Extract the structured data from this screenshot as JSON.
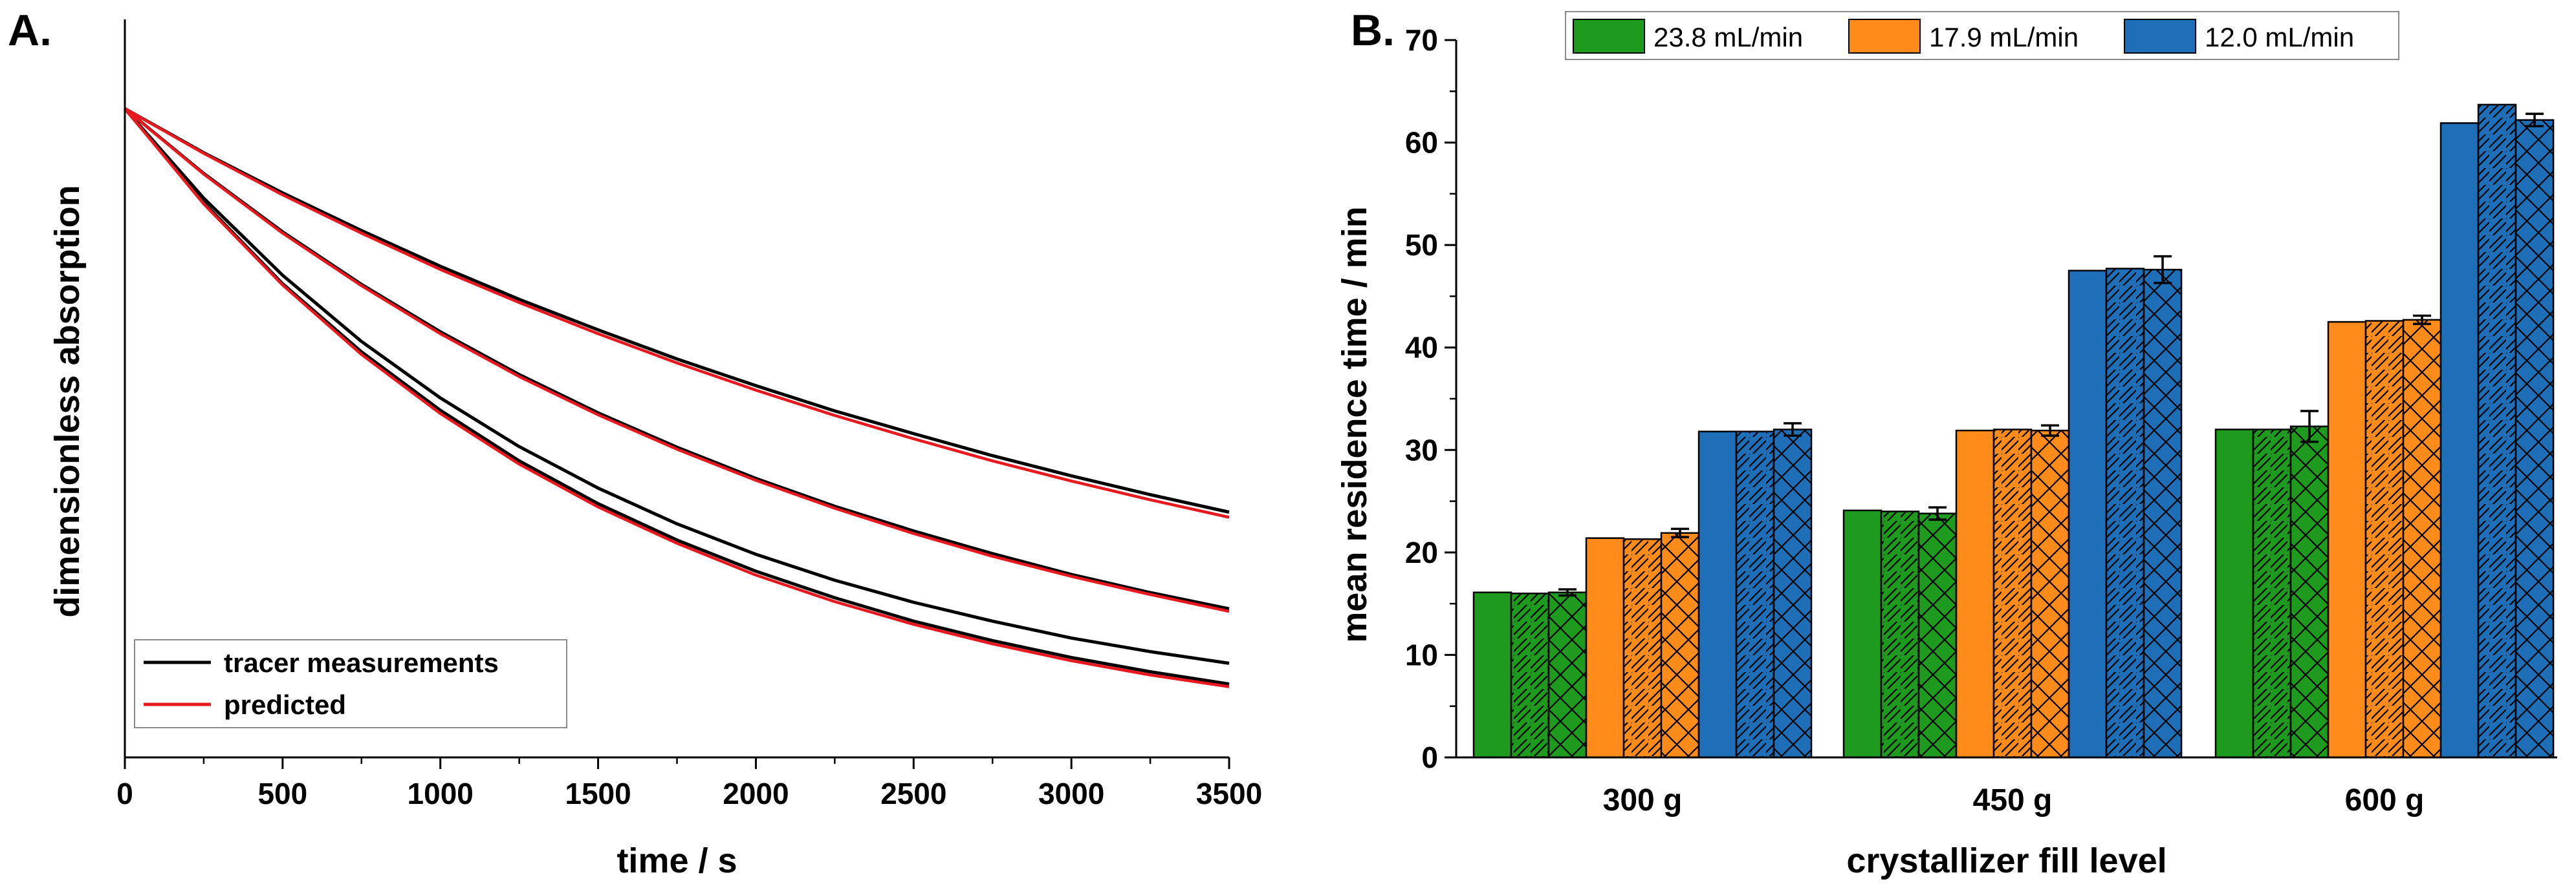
{
  "panel_a": {
    "label": "A.",
    "legend": {
      "measured": "tracer measurements",
      "predicted": "predicted"
    }
  },
  "panel_b": {
    "label": "B.",
    "legend": [
      "23.8 mL/min",
      "17.9 mL/min",
      "12.0 mL/min"
    ]
  },
  "colors": {
    "measured": "#000000",
    "predicted": "#e8191e",
    "green": "#1e9a1e",
    "orange": "#ff8c1a",
    "blue": "#1f6fb8"
  },
  "chart_data": [
    {
      "type": "line",
      "title": "",
      "xlabel": "time / s",
      "ylabel": "dimensionless absorption",
      "xlim": [
        0,
        3500
      ],
      "xticks": [
        0,
        500,
        1000,
        1500,
        2000,
        2500,
        3000,
        3500
      ],
      "yticks_labeled": false,
      "legend_position": "bottom-left",
      "x": [
        0,
        250,
        500,
        750,
        1000,
        1250,
        1500,
        1750,
        2000,
        2250,
        2500,
        2750,
        3000,
        3250,
        3500
      ],
      "series": [
        {
          "name": "tracer measurements",
          "curve": 1,
          "values": [
            1.0,
            0.932,
            0.87,
            0.812,
            0.757,
            0.706,
            0.659,
            0.614,
            0.573,
            0.534,
            0.499,
            0.465,
            0.434,
            0.405,
            0.378
          ]
        },
        {
          "name": "predicted",
          "curve": 1,
          "values": [
            1.0,
            0.931,
            0.867,
            0.808,
            0.752,
            0.701,
            0.653,
            0.608,
            0.566,
            0.527,
            0.491,
            0.457,
            0.426,
            0.397,
            0.37
          ]
        },
        {
          "name": "tracer measurements",
          "curve": 2,
          "values": [
            1.0,
            0.9,
            0.81,
            0.729,
            0.656,
            0.59,
            0.531,
            0.478,
            0.43,
            0.387,
            0.349,
            0.314,
            0.282,
            0.254,
            0.229
          ]
        },
        {
          "name": "predicted",
          "curve": 2,
          "values": [
            1.0,
            0.899,
            0.808,
            0.727,
            0.653,
            0.587,
            0.528,
            0.475,
            0.427,
            0.384,
            0.345,
            0.31,
            0.279,
            0.251,
            0.225
          ]
        },
        {
          "name": "tracer measurements",
          "curve": 3,
          "values": [
            1.0,
            0.862,
            0.743,
            0.641,
            0.554,
            0.479,
            0.415,
            0.36,
            0.313,
            0.273,
            0.239,
            0.21,
            0.184,
            0.163,
            0.145
          ]
        },
        {
          "name": "tracer measurements",
          "curve": 4,
          "values": [
            1.0,
            0.855,
            0.73,
            0.625,
            0.535,
            0.457,
            0.391,
            0.335,
            0.287,
            0.246,
            0.21,
            0.18,
            0.154,
            0.132,
            0.113
          ]
        },
        {
          "name": "predicted",
          "curve": 4,
          "values": [
            1.0,
            0.853,
            0.728,
            0.621,
            0.53,
            0.452,
            0.386,
            0.33,
            0.281,
            0.24,
            0.205,
            0.175,
            0.149,
            0.127,
            0.109
          ]
        }
      ]
    },
    {
      "type": "bar",
      "title": "",
      "xlabel": "crystallizer fill level",
      "ylabel": "mean residence time / min",
      "ylim": [
        0,
        70
      ],
      "yticks": [
        0,
        10,
        20,
        30,
        40,
        50,
        60,
        70
      ],
      "legend_position": "top",
      "categories": [
        "300 g",
        "450 g",
        "600 g"
      ],
      "bar_patterns": [
        "solid",
        "hatched",
        "cross-hatched"
      ],
      "series": [
        {
          "name": "23.8 mL/min",
          "color": "#1e9a1e",
          "values": [
            [
              16.1,
              16.0,
              16.1
            ],
            [
              24.1,
              24.0,
              23.8
            ],
            [
              32.0,
              32.0,
              32.3
            ]
          ],
          "errors": [
            [
              0,
              0,
              0.3
            ],
            [
              0,
              0,
              0.6
            ],
            [
              0,
              0,
              1.5
            ]
          ]
        },
        {
          "name": "17.9 mL/min",
          "color": "#ff8c1a",
          "values": [
            [
              21.4,
              21.3,
              21.9
            ],
            [
              31.9,
              32.0,
              31.9
            ],
            [
              42.5,
              42.6,
              42.7
            ]
          ],
          "errors": [
            [
              0,
              0,
              0.4
            ],
            [
              0,
              0,
              0.5
            ],
            [
              0,
              0,
              0.4
            ]
          ]
        },
        {
          "name": "12.0 mL/min",
          "color": "#1f6fb8",
          "values": [
            [
              31.8,
              31.8,
              32.0
            ],
            [
              47.5,
              47.7,
              47.6
            ],
            [
              61.9,
              63.7,
              62.2
            ]
          ],
          "errors": [
            [
              0,
              0,
              0.6
            ],
            [
              0,
              0,
              1.3
            ],
            [
              0,
              0,
              0.6
            ]
          ]
        }
      ]
    }
  ]
}
